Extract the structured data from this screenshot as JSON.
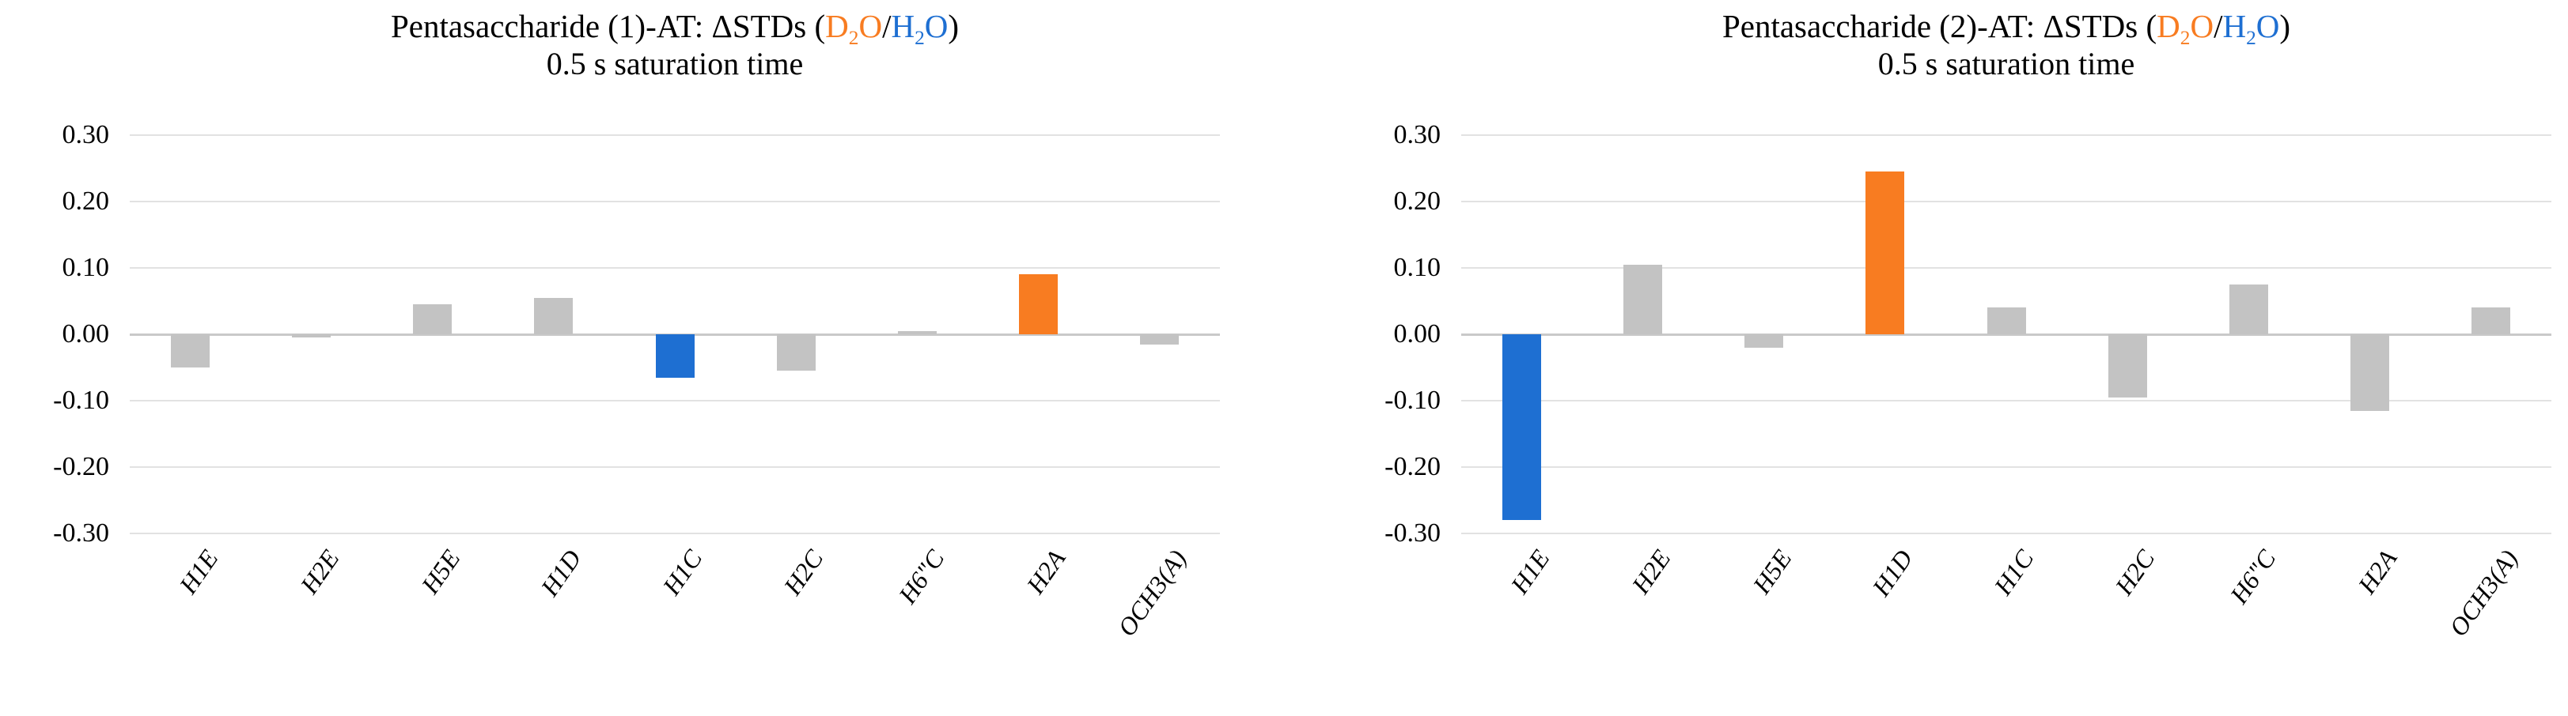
{
  "colors": {
    "bar_gray": "#C3C3C3",
    "bar_blue": "#1E6FD2",
    "bar_orange": "#F87C21",
    "gridline": "#E2E2E2",
    "zero_line": "#C9C9C9",
    "title_text": "#000000"
  },
  "chart_data": [
    {
      "type": "bar",
      "title": "Pentasaccharide (1)-AT: ΔSTDs (D₂O/H₂O)",
      "title_parts": [
        {
          "text": "Pentasaccharide (1)-AT: ΔSTDs (",
          "color": "#000000"
        },
        {
          "text": "D",
          "color": "#F87C21"
        },
        {
          "text": "2",
          "color": "#F87C21",
          "sub": true
        },
        {
          "text": "O",
          "color": "#F87C21"
        },
        {
          "text": "/",
          "color": "#000000"
        },
        {
          "text": "H",
          "color": "#1E6FD2"
        },
        {
          "text": "2",
          "color": "#1E6FD2",
          "sub": true
        },
        {
          "text": "O",
          "color": "#1E6FD2"
        },
        {
          "text": ")",
          "color": "#000000"
        }
      ],
      "subtitle": "0.5 s saturation time",
      "categories": [
        "H1E",
        "H2E",
        "H5E",
        "H1D",
        "H1C",
        "H2C",
        "H6\"C",
        "H2A",
        "OCH3(A)"
      ],
      "values": [
        -0.05,
        -0.005,
        0.045,
        0.055,
        -0.065,
        -0.055,
        0.005,
        0.09,
        -0.015
      ],
      "bar_colors": [
        "bar_gray",
        "bar_gray",
        "bar_gray",
        "bar_gray",
        "bar_blue",
        "bar_gray",
        "bar_gray",
        "bar_orange",
        "bar_gray"
      ],
      "xlabel": "",
      "ylabel": "",
      "ylim": [
        -0.3,
        0.3
      ],
      "ytick_labels": [
        "0.30",
        "0.20",
        "0.10",
        "0.00",
        "-0.10",
        "-0.20",
        "-0.30"
      ],
      "grid": true,
      "legend": "none"
    },
    {
      "type": "bar",
      "title": "Pentasaccharide (2)-AT: ΔSTDs (D₂O/H₂O)",
      "title_parts": [
        {
          "text": "Pentasaccharide (2)-AT: ΔSTDs (",
          "color": "#000000"
        },
        {
          "text": "D",
          "color": "#F87C21"
        },
        {
          "text": "2",
          "color": "#F87C21",
          "sub": true
        },
        {
          "text": "O",
          "color": "#F87C21"
        },
        {
          "text": "/",
          "color": "#000000"
        },
        {
          "text": "H",
          "color": "#1E6FD2"
        },
        {
          "text": "2",
          "color": "#1E6FD2",
          "sub": true
        },
        {
          "text": "O",
          "color": "#1E6FD2"
        },
        {
          "text": ")",
          "color": "#000000"
        }
      ],
      "subtitle": "0.5 s saturation time",
      "categories": [
        "H1E",
        "H2E",
        "H5E",
        "H1D",
        "H1C",
        "H2C",
        "H6\"C",
        "H2A",
        "OCH3(A)"
      ],
      "values": [
        -0.28,
        0.105,
        -0.02,
        0.245,
        0.04,
        -0.095,
        0.075,
        -0.115,
        0.04
      ],
      "bar_colors": [
        "bar_blue",
        "bar_gray",
        "bar_gray",
        "bar_orange",
        "bar_gray",
        "bar_gray",
        "bar_gray",
        "bar_gray",
        "bar_gray"
      ],
      "xlabel": "",
      "ylabel": "",
      "ylim": [
        -0.3,
        0.3
      ],
      "ytick_labels": [
        "0.30",
        "0.20",
        "0.10",
        "0.00",
        "-0.10",
        "-0.20",
        "-0.30"
      ],
      "grid": true,
      "legend": "none"
    }
  ]
}
